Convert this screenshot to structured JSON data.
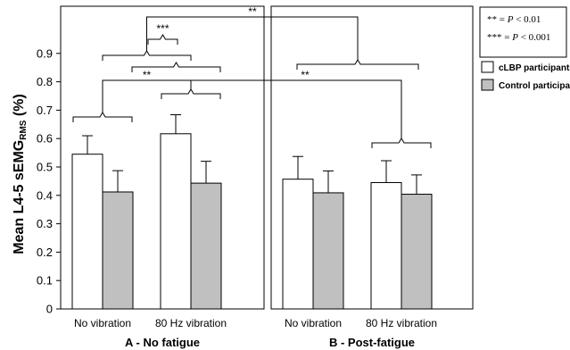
{
  "chart_data": {
    "type": "bar",
    "ylabel": "Mean L4-5 sEMG",
    "ylabel_sub": "RMS",
    "ylabel_suffix": " (%)",
    "ylim": [
      0,
      1.0
    ],
    "yticks": [
      "0",
      "0.1",
      "0.2",
      "0.3",
      "0.4",
      "0.5",
      "0.6",
      "0.7",
      "0.8",
      "0.9"
    ],
    "panels": [
      {
        "label": "A - No fatigue",
        "categories": [
          "No vibration",
          "80 Hz vibration"
        ],
        "series": [
          {
            "name": "cLBP participants",
            "values": [
              0.545,
              0.617
            ],
            "errors": [
              0.065,
              0.067
            ]
          },
          {
            "name": "Control participants",
            "values": [
              0.412,
              0.443
            ],
            "errors": [
              0.075,
              0.077
            ]
          }
        ]
      },
      {
        "label": "B - Post-fatigue",
        "categories": [
          "No vibration",
          "80 Hz vibration"
        ],
        "series": [
          {
            "name": "cLBP participants",
            "values": [
              0.457,
              0.445
            ],
            "errors": [
              0.08,
              0.077
            ]
          },
          {
            "name": "Control participants",
            "values": [
              0.409,
              0.404
            ],
            "errors": [
              0.077,
              0.068
            ]
          }
        ]
      }
    ],
    "significance": [
      "**",
      "***",
      "**",
      "**"
    ],
    "key": {
      "line1_stars": "**",
      "line1_eq": " = ",
      "line1_p": "P",
      "line1_rest": " < 0.01",
      "line2_stars": "***",
      "line2_eq": " = ",
      "line2_p": "P",
      "line2_rest": " < 0.001"
    },
    "legend": [
      "cLBP participants",
      "Control participants"
    ],
    "colors": {
      "clbp": "#ffffff",
      "control": "#c0c0c0",
      "stroke": "#000000"
    },
    "grid": false,
    "legend_position": "right"
  }
}
